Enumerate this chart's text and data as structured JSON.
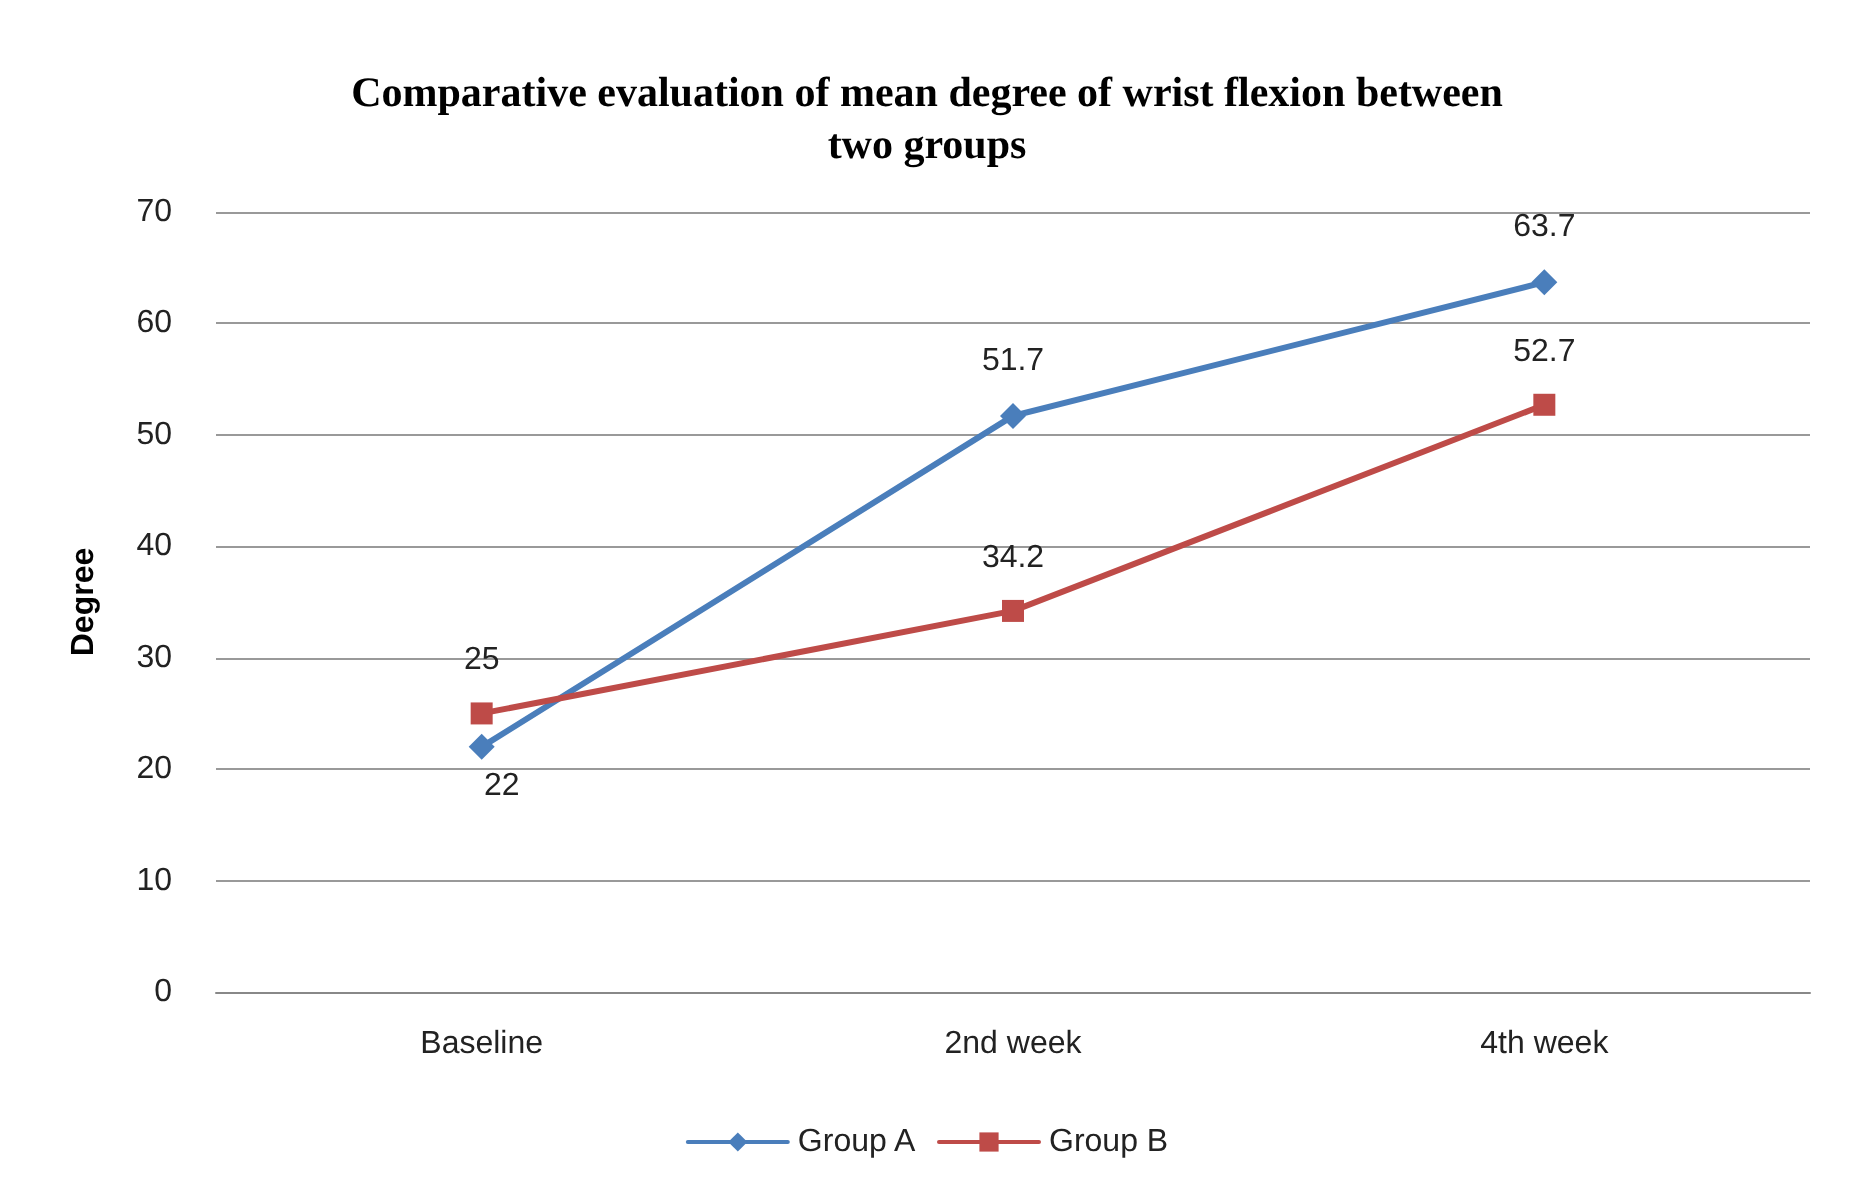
{
  "chart_data": {
    "type": "line",
    "title": "Comparative evaluation of mean degree of wrist flexion between\ntwo groups",
    "ylabel": "Degree",
    "categories": [
      "Baseline",
      "2nd week",
      "4th week"
    ],
    "series": [
      {
        "name": "Group A",
        "color": "#4a7ebb",
        "marker": "diamond",
        "values": [
          22,
          51.7,
          63.7
        ]
      },
      {
        "name": "Group B",
        "color": "#be4b48",
        "marker": "square",
        "values": [
          25,
          34.2,
          52.7
        ]
      }
    ],
    "ylim": [
      0,
      70
    ],
    "yticks": [
      0,
      10,
      20,
      30,
      40,
      50,
      60,
      70
    ],
    "grid": "y",
    "legend": "bottom",
    "data_labels": true,
    "line_style": "solid"
  }
}
